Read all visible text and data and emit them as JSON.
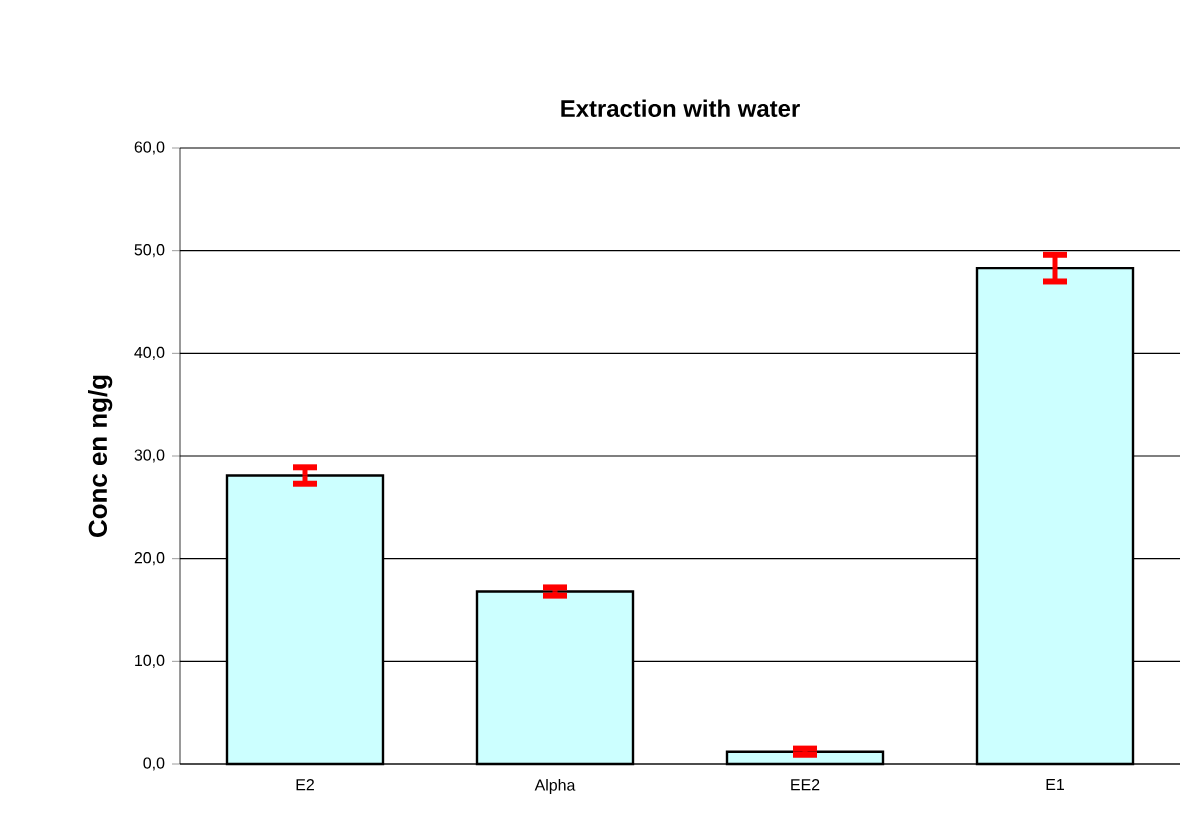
{
  "chart_data": {
    "type": "bar",
    "title": "Extraction with water",
    "ylabel": "Conc en ng/g",
    "categories": [
      "E2",
      "Alpha",
      "EE2",
      "E1"
    ],
    "values": [
      28.1,
      16.8,
      1.2,
      48.3
    ],
    "errors": [
      0.8,
      0.4,
      0.3,
      1.3
    ],
    "color": "#ccffff",
    "ylim": [
      0,
      60
    ],
    "yticks": [
      {
        "value": 0,
        "label": "0,0"
      },
      {
        "value": 10,
        "label": "10,0"
      },
      {
        "value": 20,
        "label": "20,0"
      },
      {
        "value": 30,
        "label": "30,0"
      },
      {
        "value": 40,
        "label": "40,0"
      },
      {
        "value": 50,
        "label": "50,0"
      },
      {
        "value": 60,
        "label": "60,0"
      }
    ],
    "grid": "y"
  }
}
